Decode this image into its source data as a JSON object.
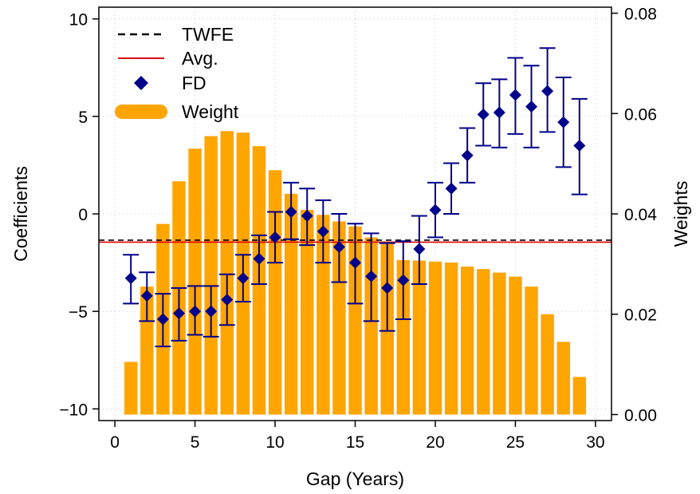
{
  "chart_data": {
    "type": "bar",
    "xlabel": "Gap (Years)",
    "ylabel": "Coefficients",
    "y2label": "Weights",
    "xlim": [
      -1,
      31
    ],
    "ylim": [
      -10.6,
      10.6
    ],
    "y2lim": [
      -0.0012,
      0.0812
    ],
    "xticks": [
      0,
      5,
      10,
      15,
      20,
      25,
      30
    ],
    "yticks": [
      -10,
      -5,
      0,
      5,
      10
    ],
    "y2ticks": [
      "0.00",
      "0.02",
      "0.04",
      "0.06",
      "0.08"
    ],
    "y2tick_values": [
      0.0,
      0.02,
      0.04,
      0.06,
      0.08
    ],
    "grid": true,
    "legend_position": "top-left",
    "legend": [
      {
        "label": "TWFE",
        "style": "dashed-line",
        "color": "#000000"
      },
      {
        "label": "Avg.",
        "style": "solid-line",
        "color": "#dd0000"
      },
      {
        "label": "FD",
        "style": "diamond",
        "color": "#00008b"
      },
      {
        "label": "Weight",
        "style": "thick-bar",
        "color": "#ffa500"
      }
    ],
    "twfe": -1.35,
    "avg": -1.45,
    "weights": {
      "x": [
        1,
        2,
        3,
        4,
        5,
        6,
        7,
        8,
        9,
        10,
        11,
        12,
        13,
        14,
        15,
        16,
        17,
        18,
        19,
        20,
        21,
        22,
        23,
        24,
        25,
        26,
        27,
        28,
        29
      ],
      "values": [
        0.0105,
        0.0255,
        0.038,
        0.0465,
        0.053,
        0.0555,
        0.0565,
        0.0562,
        0.0535,
        0.0487,
        0.044,
        0.0408,
        0.0398,
        0.0385,
        0.0375,
        0.0353,
        0.034,
        0.0308,
        0.0307,
        0.0305,
        0.0303,
        0.0295,
        0.029,
        0.0283,
        0.0275,
        0.0255,
        0.02,
        0.0145,
        0.0075
      ]
    },
    "fd": {
      "x": [
        1,
        2,
        3,
        4,
        5,
        6,
        7,
        8,
        9,
        10,
        11,
        12,
        13,
        14,
        15,
        16,
        17,
        18,
        19,
        20,
        21,
        22,
        23,
        24,
        25,
        26,
        27,
        28,
        29
      ],
      "values": [
        -3.3,
        -4.2,
        -5.4,
        -5.1,
        -5.0,
        -5.0,
        -4.4,
        -3.3,
        -2.3,
        -1.2,
        0.1,
        -0.1,
        -0.9,
        -1.7,
        -2.5,
        -3.2,
        -3.8,
        -3.4,
        -1.8,
        0.2,
        1.3,
        3.0,
        5.1,
        5.2,
        6.1,
        5.5,
        6.3,
        4.7,
        3.5
      ],
      "lower": [
        -4.6,
        -5.5,
        -6.8,
        -6.5,
        -6.2,
        -6.3,
        -5.7,
        -4.5,
        -3.6,
        -2.5,
        -1.3,
        -1.6,
        -2.5,
        -3.5,
        -4.6,
        -5.5,
        -6.0,
        -5.4,
        -3.6,
        -1.2,
        0.0,
        1.6,
        3.5,
        3.4,
        4.1,
        3.4,
        4.2,
        2.4,
        1.0
      ],
      "upper": [
        -2.1,
        -3.0,
        -4.1,
        -3.8,
        -3.7,
        -3.7,
        -3.1,
        -2.1,
        -1.1,
        0.1,
        1.6,
        1.3,
        0.7,
        0.0,
        -0.5,
        -1.0,
        -1.5,
        -1.4,
        -0.1,
        1.6,
        2.6,
        4.4,
        6.7,
        6.9,
        8.0,
        7.6,
        8.5,
        7.0,
        5.9
      ]
    }
  }
}
